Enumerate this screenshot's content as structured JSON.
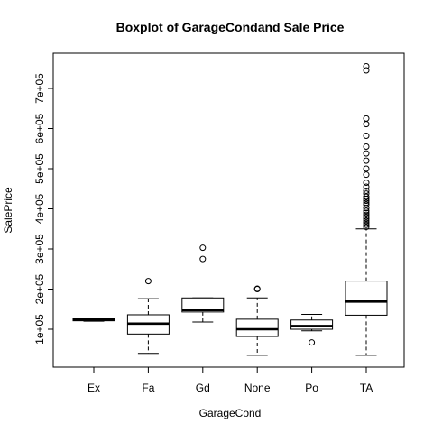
{
  "chart_data": {
    "type": "box",
    "title": "Boxplot of GarageCondand Sale Price",
    "xlabel": "GarageCond",
    "ylabel": "SalePrice",
    "ylim": [
      0,
      780000
    ],
    "y_ticks": [
      100000,
      200000,
      300000,
      400000,
      500000,
      600000,
      700000
    ],
    "y_tick_labels": [
      "1e+05",
      "2e+05",
      "3e+05",
      "4e+05",
      "5e+05",
      "6e+05",
      "7e+05"
    ],
    "categories": [
      "Ex",
      "Fa",
      "Gd",
      "None",
      "Po",
      "TA"
    ],
    "boxes": [
      {
        "category": "Ex",
        "whisker_low": 120000,
        "q1": 121000,
        "median": 124000,
        "q3": 126000,
        "whisker_high": 127000,
        "outliers": []
      },
      {
        "category": "Fa",
        "whisker_low": 40000,
        "q1": 88000,
        "median": 114000,
        "q3": 136000,
        "whisker_high": 176000,
        "outliers": [
          220000
        ]
      },
      {
        "category": "Gd",
        "whisker_low": 118000,
        "q1": 143000,
        "median": 148000,
        "q3": 178000,
        "whisker_high": 178000,
        "outliers": [
          275000,
          303000
        ]
      },
      {
        "category": "None",
        "whisker_low": 35000,
        "q1": 82000,
        "median": 100000,
        "q3": 125000,
        "whisker_high": 178000,
        "outliers": [
          200000,
          201000
        ]
      },
      {
        "category": "Po",
        "whisker_low": 96000,
        "q1": 100000,
        "median": 108000,
        "q3": 123000,
        "whisker_high": 137000,
        "outliers": [
          67000
        ]
      },
      {
        "category": "TA",
        "whisker_low": 35000,
        "q1": 135000,
        "median": 169000,
        "q3": 220000,
        "whisker_high": 350000,
        "outliers": [
          355000,
          360000,
          365000,
          370000,
          375000,
          380000,
          385000,
          390000,
          395000,
          402000,
          410000,
          415000,
          420000,
          425000,
          430000,
          438000,
          445000,
          455000,
          465000,
          485000,
          500000,
          520000,
          538000,
          555000,
          582000,
          611000,
          625000,
          745000,
          755000
        ]
      }
    ],
    "grid": false,
    "legend": "none",
    "colors": {
      "box_fill": "#ffffff",
      "stroke": "#000000",
      "background": "#ffffff"
    }
  }
}
